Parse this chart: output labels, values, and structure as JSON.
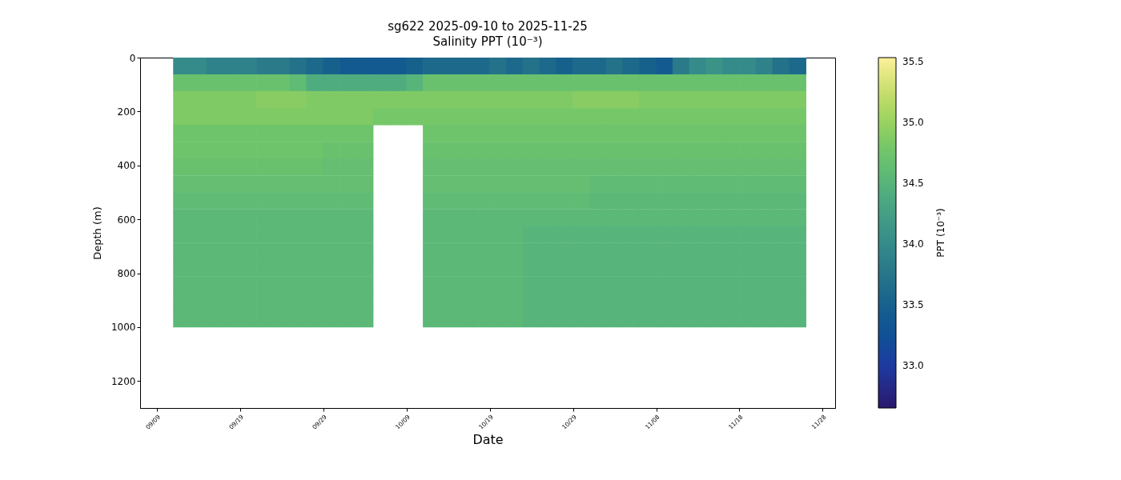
{
  "chart_data": {
    "type": "scatter",
    "title": "sg622 2025-09-10 to 2025-11-25",
    "subtitle": "Salinity PPT (10⁻³)",
    "xlabel": "Date",
    "ylabel": "Depth (m)",
    "clabel": "PPT (10⁻³)",
    "marker": "square",
    "xlim": [
      "2025-09-07",
      "2025-11-29T12:00"
    ],
    "xticks": [
      {
        "value": "2025-09-09",
        "label": "09/09"
      },
      {
        "value": "2025-09-19",
        "label": "09/19"
      },
      {
        "value": "2025-09-29",
        "label": "09/29"
      },
      {
        "value": "2025-10-09",
        "label": "10/09"
      },
      {
        "value": "2025-10-19",
        "label": "10/19"
      },
      {
        "value": "2025-10-29",
        "label": "10/29"
      },
      {
        "value": "2025-11-08",
        "label": "11/08"
      },
      {
        "value": "2025-11-18",
        "label": "11/18"
      },
      {
        "value": "2025-11-28",
        "label": "11/28"
      }
    ],
    "ylim": [
      1300,
      0
    ],
    "yticks": [
      0,
      200,
      400,
      600,
      800,
      1000,
      1200
    ],
    "clim": [
      32.65,
      35.53
    ],
    "cticks": [
      {
        "value": 33,
        "label": "33.0"
      },
      33.5,
      {
        "value": 34,
        "label": "34.0"
      },
      34.5,
      {
        "value": 35,
        "label": "35.0"
      },
      35.5
    ],
    "x": [
      "2025-09-12",
      "2025-09-14",
      "2025-09-16",
      "2025-09-18",
      "2025-09-20",
      "2025-09-22",
      "2025-09-24",
      "2025-09-26",
      "2025-09-28",
      "2025-09-30",
      "2025-10-02",
      "2025-10-04",
      "2025-10-06",
      "2025-10-08",
      "2025-10-10",
      "2025-10-12",
      "2025-10-14",
      "2025-10-16",
      "2025-10-18",
      "2025-10-20",
      "2025-10-22",
      "2025-10-24",
      "2025-10-26",
      "2025-10-28",
      "2025-10-30",
      "2025-11-01",
      "2025-11-03",
      "2025-11-05",
      "2025-11-07",
      "2025-11-09",
      "2025-11-11",
      "2025-11-13",
      "2025-11-15",
      "2025-11-17",
      "2025-11-19",
      "2025-11-21",
      "2025-11-23",
      "2025-11-25",
      "2025-09-12",
      "2025-09-14",
      "2025-09-16",
      "2025-09-18",
      "2025-09-20",
      "2025-09-22",
      "2025-09-24",
      "2025-09-26",
      "2025-09-28",
      "2025-09-30",
      "2025-10-02",
      "2025-10-04",
      "2025-10-06",
      "2025-10-08",
      "2025-10-10",
      "2025-10-12",
      "2025-10-14",
      "2025-10-16",
      "2025-10-18",
      "2025-10-20",
      "2025-10-22",
      "2025-10-24",
      "2025-10-26",
      "2025-10-28",
      "2025-10-30",
      "2025-11-01",
      "2025-11-03",
      "2025-11-05",
      "2025-11-07",
      "2025-11-09",
      "2025-11-11",
      "2025-11-13",
      "2025-11-15",
      "2025-11-17",
      "2025-11-19",
      "2025-11-21",
      "2025-11-23",
      "2025-11-25",
      "2025-09-12",
      "2025-09-14",
      "2025-09-16",
      "2025-09-18",
      "2025-09-20",
      "2025-09-22",
      "2025-09-24",
      "2025-09-26",
      "2025-09-28",
      "2025-09-30",
      "2025-10-02",
      "2025-10-04",
      "2025-10-06",
      "2025-10-08",
      "2025-10-10",
      "2025-10-12",
      "2025-10-14",
      "2025-10-16",
      "2025-10-18",
      "2025-10-20",
      "2025-10-22",
      "2025-10-24",
      "2025-10-26",
      "2025-10-28",
      "2025-10-30",
      "2025-11-01",
      "2025-11-03",
      "2025-11-05",
      "2025-11-07",
      "2025-11-09",
      "2025-11-11",
      "2025-11-13",
      "2025-11-15",
      "2025-11-17",
      "2025-11-19",
      "2025-11-21",
      "2025-11-23",
      "2025-11-25",
      "2025-09-12",
      "2025-09-14",
      "2025-09-16",
      "2025-09-18",
      "2025-09-20",
      "2025-09-22",
      "2025-09-24",
      "2025-09-26",
      "2025-09-28",
      "2025-09-30",
      "2025-10-02",
      "2025-10-04",
      "2025-10-06",
      "2025-10-08",
      "2025-10-10",
      "2025-10-12",
      "2025-10-14",
      "2025-10-16",
      "2025-10-18",
      "2025-10-20",
      "2025-10-22",
      "2025-10-24",
      "2025-10-26",
      "2025-10-28",
      "2025-10-30",
      "2025-11-01",
      "2025-11-03",
      "2025-11-05",
      "2025-11-07",
      "2025-11-09",
      "2025-11-11",
      "2025-11-13",
      "2025-11-15",
      "2025-11-17",
      "2025-11-19",
      "2025-11-21",
      "2025-11-23",
      "2025-11-25",
      "2025-09-12",
      "2025-09-14",
      "2025-09-16",
      "2025-09-18",
      "2025-09-20",
      "2025-09-22",
      "2025-09-24",
      "2025-09-26",
      "2025-09-28",
      "2025-09-30",
      "2025-10-02",
      "2025-10-04",
      "2025-10-12",
      "2025-10-14",
      "2025-10-16",
      "2025-10-18",
      "2025-10-20",
      "2025-10-22",
      "2025-10-24",
      "2025-10-26",
      "2025-10-28",
      "2025-10-30",
      "2025-11-01",
      "2025-11-03",
      "2025-11-05",
      "2025-11-07",
      "2025-11-09",
      "2025-11-11",
      "2025-11-13",
      "2025-11-15",
      "2025-11-17",
      "2025-11-19",
      "2025-11-21",
      "2025-11-23",
      "2025-11-25",
      "2025-09-12",
      "2025-09-14",
      "2025-09-16",
      "2025-09-18",
      "2025-09-20",
      "2025-09-22",
      "2025-09-24",
      "2025-09-26",
      "2025-09-28",
      "2025-09-30",
      "2025-10-02",
      "2025-10-04",
      "2025-10-12",
      "2025-10-14",
      "2025-10-16",
      "2025-10-18",
      "2025-10-20",
      "2025-10-22",
      "2025-10-24",
      "2025-10-26",
      "2025-10-28",
      "2025-10-30",
      "2025-11-01",
      "2025-11-03",
      "2025-11-05",
      "2025-11-07",
      "2025-11-09",
      "2025-11-11",
      "2025-11-13",
      "2025-11-15",
      "2025-11-17",
      "2025-11-19",
      "2025-11-21",
      "2025-11-23",
      "2025-11-25",
      "2025-09-12",
      "2025-09-14",
      "2025-09-16",
      "2025-09-18",
      "2025-09-20",
      "2025-09-22",
      "2025-09-24",
      "2025-09-26",
      "2025-09-28",
      "2025-09-30",
      "2025-10-02",
      "2025-10-04",
      "2025-10-12",
      "2025-10-14",
      "2025-10-16",
      "2025-10-18",
      "2025-10-20",
      "2025-10-22",
      "2025-10-24",
      "2025-10-26",
      "2025-10-28",
      "2025-10-30",
      "2025-11-01",
      "2025-11-03",
      "2025-11-05",
      "2025-11-07",
      "2025-11-09",
      "2025-11-11",
      "2025-11-13",
      "2025-11-15",
      "2025-11-17",
      "2025-11-19",
      "2025-11-21",
      "2025-11-23",
      "2025-11-25",
      "2025-09-12",
      "2025-09-14",
      "2025-09-16",
      "2025-09-18",
      "2025-09-20",
      "2025-09-22",
      "2025-09-24",
      "2025-09-26",
      "2025-09-28",
      "2025-09-30",
      "2025-10-02",
      "2025-10-04",
      "2025-10-12",
      "2025-10-14",
      "2025-10-16",
      "2025-10-18",
      "2025-10-20",
      "2025-10-22",
      "2025-10-24",
      "2025-10-26",
      "2025-10-28",
      "2025-10-30",
      "2025-11-01",
      "2025-11-03",
      "2025-11-05",
      "2025-11-07",
      "2025-11-09",
      "2025-11-11",
      "2025-11-13",
      "2025-11-15",
      "2025-11-17",
      "2025-11-19",
      "2025-11-21",
      "2025-11-23",
      "2025-11-25",
      "2025-09-12",
      "2025-09-14",
      "2025-09-16",
      "2025-09-18",
      "2025-09-20",
      "2025-09-22",
      "2025-09-24",
      "2025-09-26",
      "2025-09-28",
      "2025-09-30",
      "2025-10-02",
      "2025-10-04",
      "2025-10-12",
      "2025-10-14",
      "2025-10-16",
      "2025-10-18",
      "2025-10-20",
      "2025-10-22",
      "2025-10-24",
      "2025-10-26",
      "2025-10-28",
      "2025-10-30",
      "2025-11-01",
      "2025-11-03",
      "2025-11-05",
      "2025-11-07",
      "2025-11-09",
      "2025-11-11",
      "2025-11-13",
      "2025-11-15",
      "2025-11-17",
      "2025-11-19",
      "2025-11-21",
      "2025-11-23",
      "2025-11-25",
      "2025-09-12",
      "2025-09-14",
      "2025-09-16",
      "2025-09-18",
      "2025-09-20",
      "2025-09-22",
      "2025-09-24",
      "2025-09-26",
      "2025-09-28",
      "2025-09-30",
      "2025-10-02",
      "2025-10-04",
      "2025-10-12",
      "2025-10-14",
      "2025-10-16",
      "2025-10-18",
      "2025-10-20",
      "2025-10-22",
      "2025-10-24",
      "2025-10-26",
      "2025-10-28",
      "2025-10-30",
      "2025-11-01",
      "2025-11-03",
      "2025-11-05",
      "2025-11-07",
      "2025-11-09",
      "2025-11-11",
      "2025-11-13",
      "2025-11-15",
      "2025-11-17",
      "2025-11-19",
      "2025-11-21",
      "2025-11-23",
      "2025-11-25",
      "2025-09-12",
      "2025-09-14",
      "2025-09-16",
      "2025-09-18",
      "2025-09-20",
      "2025-09-22",
      "2025-09-24",
      "2025-09-26",
      "2025-09-28",
      "2025-09-30",
      "2025-10-02",
      "2025-10-04",
      "2025-10-12",
      "2025-10-14",
      "2025-10-16",
      "2025-10-18",
      "2025-10-20",
      "2025-10-22",
      "2025-10-24",
      "2025-10-26",
      "2025-10-28",
      "2025-10-30",
      "2025-11-01",
      "2025-11-03",
      "2025-11-05",
      "2025-11-07",
      "2025-11-09",
      "2025-11-11",
      "2025-11-13",
      "2025-11-15",
      "2025-11-17",
      "2025-11-19",
      "2025-11-21",
      "2025-11-23",
      "2025-11-25",
      "2025-09-12",
      "2025-09-14",
      "2025-09-16",
      "2025-09-18",
      "2025-09-20",
      "2025-09-22",
      "2025-09-24",
      "2025-09-26",
      "2025-09-28",
      "2025-09-30",
      "2025-10-02",
      "2025-10-04",
      "2025-10-12",
      "2025-10-14",
      "2025-10-16",
      "2025-10-18",
      "2025-10-20",
      "2025-10-22",
      "2025-10-24",
      "2025-10-26",
      "2025-10-28",
      "2025-10-30",
      "2025-11-01",
      "2025-11-03",
      "2025-11-05",
      "2025-11-07",
      "2025-11-09",
      "2025-11-11",
      "2025-11-13",
      "2025-11-15",
      "2025-11-17",
      "2025-11-19",
      "2025-11-21",
      "2025-11-23",
      "2025-11-25",
      "2025-09-12",
      "2025-09-14",
      "2025-09-16",
      "2025-09-18",
      "2025-09-20",
      "2025-09-22",
      "2025-09-24",
      "2025-09-26",
      "2025-09-28",
      "2025-09-30",
      "2025-10-02",
      "2025-10-04",
      "2025-10-12",
      "2025-10-14",
      "2025-10-16",
      "2025-10-18",
      "2025-10-20",
      "2025-10-22",
      "2025-10-24",
      "2025-10-26",
      "2025-10-28",
      "2025-10-30",
      "2025-11-01",
      "2025-11-03",
      "2025-11-05",
      "2025-11-07",
      "2025-11-09",
      "2025-11-11",
      "2025-11-13",
      "2025-11-15",
      "2025-11-17",
      "2025-11-19",
      "2025-11-21",
      "2025-11-23",
      "2025-11-25",
      "2025-09-12",
      "2025-09-14",
      "2025-09-16",
      "2025-09-18",
      "2025-09-20",
      "2025-09-22",
      "2025-09-24",
      "2025-09-26",
      "2025-09-28",
      "2025-09-30",
      "2025-10-02",
      "2025-10-04",
      "2025-10-12",
      "2025-10-14",
      "2025-10-16",
      "2025-10-18",
      "2025-10-20",
      "2025-10-22",
      "2025-10-24",
      "2025-10-26",
      "2025-10-28",
      "2025-10-30",
      "2025-11-01",
      "2025-11-03",
      "2025-11-05",
      "2025-11-07",
      "2025-11-09",
      "2025-11-11",
      "2025-11-13",
      "2025-11-15",
      "2025-11-17",
      "2025-11-19",
      "2025-11-21",
      "2025-11-23",
      "2025-11-25",
      "2025-09-12",
      "2025-09-14",
      "2025-09-16",
      "2025-09-18",
      "2025-09-20",
      "2025-09-22",
      "2025-09-24",
      "2025-09-26",
      "2025-09-28",
      "2025-09-30",
      "2025-10-02",
      "2025-10-04",
      "2025-10-12",
      "2025-10-14",
      "2025-10-16",
      "2025-10-18",
      "2025-10-20",
      "2025-10-22",
      "2025-10-24",
      "2025-10-26",
      "2025-10-28",
      "2025-10-30",
      "2025-11-01",
      "2025-11-03",
      "2025-11-05",
      "2025-11-07",
      "2025-11-09",
      "2025-11-11",
      "2025-11-13",
      "2025-11-15",
      "2025-11-17",
      "2025-11-19",
      "2025-11-21",
      "2025-11-23",
      "2025-11-25",
      "2025-09-12",
      "2025-09-14",
      "2025-09-16",
      "2025-09-18",
      "2025-09-20",
      "2025-09-22",
      "2025-09-24",
      "2025-09-26",
      "2025-09-28",
      "2025-09-30",
      "2025-10-02",
      "2025-10-04",
      "2025-10-12",
      "2025-10-14",
      "2025-10-16",
      "2025-10-18",
      "2025-10-20",
      "2025-10-22",
      "2025-10-24",
      "2025-10-26",
      "2025-10-28",
      "2025-10-30",
      "2025-11-01",
      "2025-11-03",
      "2025-11-05",
      "2025-11-07",
      "2025-11-09",
      "2025-11-11",
      "2025-11-13",
      "2025-11-15",
      "2025-11-17",
      "2025-11-19",
      "2025-11-21",
      "2025-11-23",
      "2025-11-25"
    ],
    "values": [
      31,
      31,
      31,
      31,
      31,
      31,
      31,
      31,
      31,
      31,
      31,
      31,
      31,
      31,
      31,
      31,
      31,
      31,
      31,
      31,
      31,
      31,
      31,
      31,
      31,
      31,
      31,
      31,
      31,
      31,
      31,
      31,
      31,
      31,
      31,
      31,
      31,
      31,
      94,
      94,
      94,
      94,
      94,
      94,
      94,
      94,
      94,
      94,
      94,
      94,
      94,
      94,
      94,
      94,
      94,
      94,
      94,
      94,
      94,
      94,
      94,
      94,
      94,
      94,
      94,
      94,
      94,
      94,
      94,
      94,
      94,
      94,
      94,
      94,
      94,
      94,
      156,
      156,
      156,
      156,
      156,
      156,
      156,
      156,
      156,
      156,
      156,
      156,
      156,
      156,
      156,
      156,
      156,
      156,
      156,
      156,
      156,
      156,
      156,
      156,
      156,
      156,
      156,
      156,
      156,
      156,
      156,
      156,
      156,
      156,
      156,
      156,
      156,
      156,
      219,
      219,
      219,
      219,
      219,
      219,
      219,
      219,
      219,
      219,
      219,
      219,
      219,
      219,
      219,
      219,
      219,
      219,
      219,
      219,
      219,
      219,
      219,
      219,
      219,
      219,
      219,
      219,
      219,
      219,
      219,
      219,
      219,
      219,
      219,
      219,
      219,
      219,
      281,
      281,
      281,
      281,
      281,
      281,
      281,
      281,
      281,
      281,
      281,
      281,
      281,
      281,
      281,
      281,
      281,
      281,
      281,
      281,
      281,
      281,
      281,
      281,
      281,
      281,
      281,
      281,
      281,
      281,
      281,
      281,
      281,
      281,
      281,
      344,
      344,
      344,
      344,
      344,
      344,
      344,
      344,
      344,
      344,
      344,
      344,
      344,
      344,
      344,
      344,
      344,
      344,
      344,
      344,
      344,
      344,
      344,
      344,
      344,
      344,
      344,
      344,
      344,
      344,
      344,
      344,
      344,
      344,
      344,
      406,
      406,
      406,
      406,
      406,
      406,
      406,
      406,
      406,
      406,
      406,
      406,
      406,
      406,
      406,
      406,
      406,
      406,
      406,
      406,
      406,
      406,
      406,
      406,
      406,
      406,
      406,
      406,
      406,
      406,
      406,
      406,
      406,
      406,
      406,
      469,
      469,
      469,
      469,
      469,
      469,
      469,
      469,
      469,
      469,
      469,
      469,
      469,
      469,
      469,
      469,
      469,
      469,
      469,
      469,
      469,
      469,
      469,
      469,
      469,
      469,
      469,
      469,
      469,
      469,
      469,
      469,
      469,
      469,
      469,
      531,
      531,
      531,
      531,
      531,
      531,
      531,
      531,
      531,
      531,
      531,
      531,
      531,
      531,
      531,
      531,
      531,
      531,
      531,
      531,
      531,
      531,
      531,
      531,
      531,
      531,
      531,
      531,
      531,
      531,
      531,
      531,
      531,
      531,
      531,
      594,
      594,
      594,
      594,
      594,
      594,
      594,
      594,
      594,
      594,
      594,
      594,
      594,
      594,
      594,
      594,
      594,
      594,
      594,
      594,
      594,
      594,
      594,
      594,
      594,
      594,
      594,
      594,
      594,
      594,
      594,
      594,
      594,
      594,
      594,
      656,
      656,
      656,
      656,
      656,
      656,
      656,
      656,
      656,
      656,
      656,
      656,
      656,
      656,
      656,
      656,
      656,
      656,
      656,
      656,
      656,
      656,
      656,
      656,
      656,
      656,
      656,
      656,
      656,
      656,
      656,
      656,
      656,
      656,
      656,
      719,
      719,
      719,
      719,
      719,
      719,
      719,
      719,
      719,
      719,
      719,
      719,
      719,
      719,
      719,
      719,
      719,
      719,
      719,
      719,
      719,
      719,
      719,
      719,
      719,
      719,
      719,
      719,
      719,
      719,
      719,
      719,
      719,
      719,
      719,
      781,
      781,
      781,
      781,
      781,
      781,
      781,
      781,
      781,
      781,
      781,
      781,
      781,
      781,
      781,
      781,
      781,
      781,
      781,
      781,
      781,
      781,
      781,
      781,
      781,
      781,
      781,
      781,
      781,
      781,
      781,
      781,
      781,
      781,
      781,
      844,
      844,
      844,
      844,
      844,
      844,
      844,
      844,
      844,
      844,
      844,
      844,
      844,
      844,
      844,
      844,
      844,
      844,
      844,
      844,
      844,
      844,
      844,
      844,
      844,
      844,
      844,
      844,
      844,
      844,
      844,
      844,
      844,
      844,
      844,
      906,
      906,
      906,
      906,
      906,
      906,
      906,
      906,
      906,
      906,
      906,
      906,
      906,
      906,
      906,
      906,
      906,
      906,
      906,
      906,
      906,
      906,
      906,
      906,
      906,
      906,
      906,
      906,
      906,
      906,
      906,
      906,
      906,
      906,
      906,
      969,
      969,
      969,
      969,
      969,
      969,
      969,
      969,
      969,
      969,
      969,
      969,
      969,
      969,
      969,
      969,
      969,
      969,
      969,
      969,
      969,
      969,
      969,
      969,
      969,
      969,
      969,
      969,
      969,
      969,
      969,
      969,
      969,
      969,
      969
    ],
    "cvalues": [
      34.0,
      34.0,
      33.9,
      33.9,
      33.9,
      33.8,
      33.8,
      33.7,
      33.6,
      33.5,
      33.4,
      33.4,
      33.4,
      33.4,
      33.5,
      33.6,
      33.6,
      33.6,
      33.6,
      33.7,
      33.6,
      33.7,
      33.6,
      33.5,
      33.6,
      33.6,
      33.7,
      33.6,
      33.5,
      33.4,
      33.8,
      34.0,
      34.1,
      34.0,
      34.0,
      33.9,
      33.7,
      33.6,
      34.7,
      34.7,
      34.7,
      34.7,
      34.7,
      34.7,
      34.7,
      34.6,
      34.4,
      34.4,
      34.4,
      34.4,
      34.4,
      34.4,
      34.5,
      34.7,
      34.7,
      34.7,
      34.7,
      34.7,
      34.7,
      34.7,
      34.7,
      34.7,
      34.7,
      34.7,
      34.7,
      34.7,
      34.7,
      34.7,
      34.7,
      34.7,
      34.7,
      34.7,
      34.7,
      34.7,
      34.7,
      34.7,
      34.85,
      34.85,
      34.85,
      34.85,
      34.85,
      34.9,
      34.9,
      34.9,
      34.85,
      34.85,
      34.85,
      34.85,
      34.85,
      34.85,
      34.85,
      34.85,
      34.85,
      34.85,
      34.85,
      34.85,
      34.85,
      34.85,
      34.85,
      34.85,
      34.9,
      34.9,
      34.9,
      34.9,
      34.85,
      34.85,
      34.85,
      34.85,
      34.85,
      34.85,
      34.85,
      34.85,
      34.85,
      34.85,
      34.85,
      34.85,
      34.85,
      34.85,
      34.85,
      34.85,
      34.85,
      34.85,
      34.85,
      34.85,
      34.85,
      34.85,
      34.8,
      34.8,
      34.8,
      34.8,
      34.8,
      34.8,
      34.8,
      34.8,
      34.8,
      34.8,
      34.8,
      34.8,
      34.8,
      34.8,
      34.8,
      34.8,
      34.8,
      34.8,
      34.8,
      34.8,
      34.8,
      34.8,
      34.8,
      34.8,
      34.8,
      34.8,
      34.75,
      34.75,
      34.75,
      34.75,
      34.75,
      34.75,
      34.75,
      34.75,
      34.75,
      34.75,
      34.75,
      34.75,
      34.75,
      34.75,
      34.75,
      34.75,
      34.75,
      34.75,
      34.75,
      34.75,
      34.75,
      34.75,
      34.75,
      34.75,
      34.75,
      34.75,
      34.75,
      34.75,
      34.75,
      34.75,
      34.75,
      34.75,
      34.75,
      34.75,
      34.75,
      34.75,
      34.75,
      34.75,
      34.75,
      34.75,
      34.75,
      34.75,
      34.75,
      34.75,
      34.7,
      34.7,
      34.7,
      34.7,
      34.7,
      34.7,
      34.7,
      34.7,
      34.7,
      34.7,
      34.7,
      34.7,
      34.7,
      34.7,
      34.7,
      34.7,
      34.7,
      34.7,
      34.7,
      34.7,
      34.7,
      34.7,
      34.7,
      34.7,
      34.7,
      34.7,
      34.7,
      34.7,
      34.7,
      34.7,
      34.7,
      34.7,
      34.7,
      34.7,
      34.7,
      34.65,
      34.65,
      34.65,
      34.65,
      34.65,
      34.65,
      34.65,
      34.65,
      34.65,
      34.65,
      34.65,
      34.65,
      34.65,
      34.65,
      34.65,
      34.65,
      34.65,
      34.65,
      34.65,
      34.65,
      34.65,
      34.65,
      34.65,
      34.65,
      34.65,
      34.65,
      34.65,
      34.65,
      34.65,
      34.65,
      34.65,
      34.65,
      34.65,
      34.65,
      34.65,
      34.65,
      34.65,
      34.65,
      34.65,
      34.65,
      34.65,
      34.65,
      34.65,
      34.65,
      34.65,
      34.65,
      34.65,
      34.65,
      34.6,
      34.6,
      34.6,
      34.6,
      34.6,
      34.6,
      34.6,
      34.6,
      34.6,
      34.6,
      34.6,
      34.6,
      34.6,
      34.6,
      34.6,
      34.6,
      34.6,
      34.6,
      34.6,
      34.6,
      34.6,
      34.6,
      34.6,
      34.6,
      34.6,
      34.6,
      34.6,
      34.6,
      34.6,
      34.6,
      34.6,
      34.6,
      34.6,
      34.6,
      34.6,
      34.55,
      34.55,
      34.55,
      34.55,
      34.55,
      34.55,
      34.55,
      34.55,
      34.55,
      34.55,
      34.55,
      34.55,
      34.55,
      34.55,
      34.55,
      34.55,
      34.55,
      34.55,
      34.55,
      34.55,
      34.55,
      34.55,
      34.55,
      34.55,
      34.55,
      34.55,
      34.55,
      34.55,
      34.55,
      34.55,
      34.55,
      34.55,
      34.55,
      34.55,
      34.55,
      34.55,
      34.55,
      34.55,
      34.55,
      34.55,
      34.55,
      34.55,
      34.55,
      34.55,
      34.55,
      34.55,
      34.55,
      34.55,
      34.55,
      34.55,
      34.55,
      34.55,
      34.55,
      34.55,
      34.55,
      34.55,
      34.55,
      34.55,
      34.55,
      34.55,
      34.55,
      34.55,
      34.55,
      34.55,
      34.55,
      34.55,
      34.5,
      34.5,
      34.5,
      34.5,
      34.5,
      34.5,
      34.5,
      34.5,
      34.5,
      34.5,
      34.5,
      34.5,
      34.5,
      34.5,
      34.5,
      34.5,
      34.5,
      34.55,
      34.55,
      34.55,
      34.55,
      34.55,
      34.55,
      34.55,
      34.55,
      34.55,
      34.55,
      34.55,
      34.55,
      34.55,
      34.55,
      34.55,
      34.55,
      34.55,
      34.55,
      34.5,
      34.5,
      34.5,
      34.5,
      34.5,
      34.5,
      34.5,
      34.5,
      34.5,
      34.5,
      34.5,
      34.5,
      34.5,
      34.5,
      34.5,
      34.5,
      34.5,
      34.55,
      34.55,
      34.55,
      34.55,
      34.55,
      34.55,
      34.55,
      34.55,
      34.55,
      34.55,
      34.55,
      34.55,
      34.55,
      34.55,
      34.55,
      34.55,
      34.55,
      34.55,
      34.5,
      34.5,
      34.5,
      34.5,
      34.5,
      34.5,
      34.5,
      34.5,
      34.5,
      34.5,
      34.5,
      34.5,
      34.5,
      34.5,
      34.5,
      34.5,
      34.5,
      34.55,
      34.55,
      34.55,
      34.55,
      34.55,
      34.55,
      34.55,
      34.55,
      34.55,
      34.55,
      34.55,
      34.55,
      34.55,
      34.55,
      34.55,
      34.55,
      34.55,
      34.55,
      34.5,
      34.5,
      34.5,
      34.5,
      34.5,
      34.5,
      34.5,
      34.5,
      34.5,
      34.5,
      34.5,
      34.5,
      34.5,
      34.5,
      34.5,
      34.5,
      34.5,
      34.55,
      34.55,
      34.55,
      34.55,
      34.55,
      34.55,
      34.55,
      34.55,
      34.55,
      34.55,
      34.55,
      34.55,
      34.55,
      34.55,
      34.55,
      34.55,
      34.55,
      34.55,
      34.5,
      34.5,
      34.5,
      34.5,
      34.5,
      34.5,
      34.5,
      34.5,
      34.5,
      34.5,
      34.5,
      34.5,
      34.5,
      34.5,
      34.5,
      34.5,
      34.5,
      34.55,
      34.55,
      34.55,
      34.55,
      34.55,
      34.55,
      34.55,
      34.55,
      34.55,
      34.55,
      34.55,
      34.55,
      34.55,
      34.55,
      34.55,
      34.55,
      34.55,
      34.55,
      34.5,
      34.5,
      34.5,
      34.5,
      34.5,
      34.5,
      34.5,
      34.5,
      34.5,
      34.5,
      34.5,
      34.5,
      34.5,
      34.5,
      34.5,
      34.5,
      34.5
    ]
  }
}
